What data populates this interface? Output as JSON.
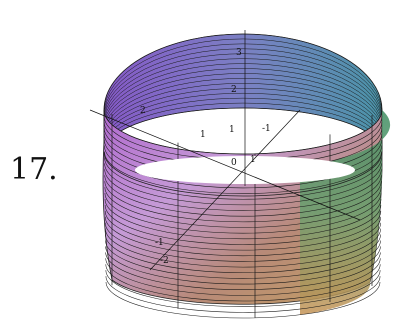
{
  "problem": {
    "number": "17."
  },
  "plot": {
    "type": "3D surface plot",
    "surface": "cylinder",
    "ring_count": 30,
    "meridian_count": 14,
    "tick_labels_z": [
      "3",
      "2",
      "1",
      "0"
    ],
    "tick_labels_x": [
      "2",
      "1",
      "-1"
    ],
    "tick_labels_y": [
      "1",
      "-1",
      "-2"
    ],
    "colors": {
      "top_right": "#3a8a5a",
      "left": "#8a57c8",
      "bottom_right": "#c9945a",
      "inner_back": "#4b7bbf"
    }
  }
}
